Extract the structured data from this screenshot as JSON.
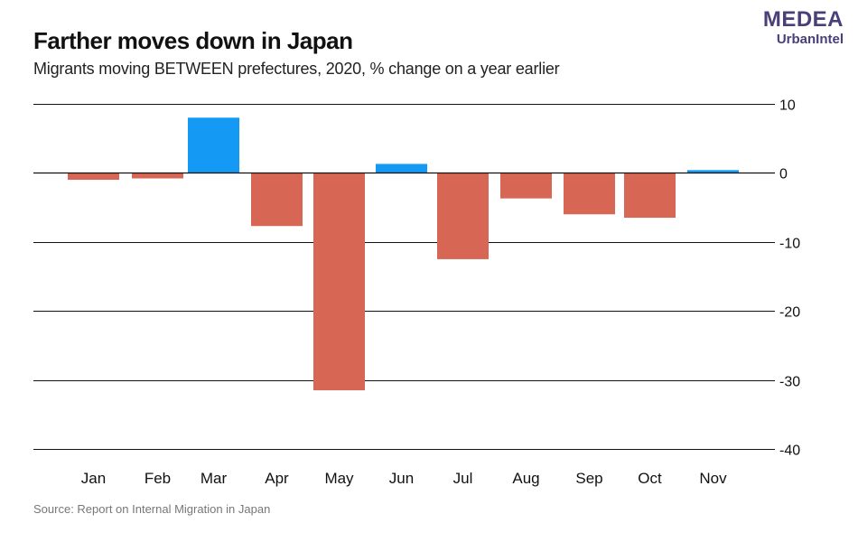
{
  "header": {
    "title": "Farther moves down in Japan",
    "subtitle": "Migrants moving BETWEEN prefectures, 2020, % change on a year earlier"
  },
  "logo": {
    "line1": "MEDEA",
    "line2": "UrbanIntel"
  },
  "footer": {
    "source": "Source: Report on Internal Migration in Japan"
  },
  "colors": {
    "positive": "#1499f4",
    "negative": "#d76754",
    "gridline": "#111111"
  },
  "chart_data": {
    "type": "bar",
    "title": "Farther moves down in Japan",
    "subtitle": "Migrants moving BETWEEN prefectures, 2020, % change on a year earlier",
    "xlabel": "",
    "ylabel": "",
    "categories": [
      "Jan",
      "Feb",
      "Mar",
      "Apr",
      "May",
      "Jun",
      "Jul",
      "Aug",
      "Sep",
      "Oct",
      "Nov"
    ],
    "values": [
      -1.0,
      -0.8,
      8.0,
      -7.7,
      -31.5,
      1.3,
      -12.5,
      -3.7,
      -6.0,
      -6.5,
      0.4
    ],
    "ylim": [
      -40,
      10
    ],
    "yticks": [
      10,
      0,
      -10,
      -20,
      -30,
      -40
    ],
    "ytick_labels": [
      "10",
      "0",
      "-10",
      "-20",
      "-30",
      "-40"
    ],
    "y_axis_side": "right",
    "grid": true,
    "legend": "none",
    "source": "Source: Report on Internal Migration in Japan"
  }
}
